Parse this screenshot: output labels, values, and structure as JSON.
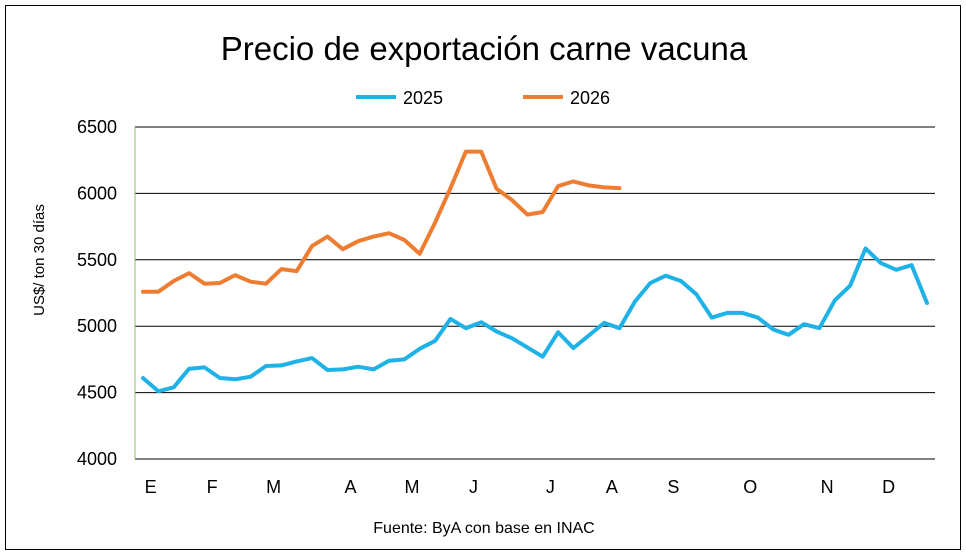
{
  "chart_data": {
    "type": "line",
    "title": "Precio de exportación carne vacuna",
    "xlabel": "",
    "ylabel": "US$/ ton 30 días",
    "source": "Fuente: ByA con base en INAC",
    "ylim": [
      4000,
      6500
    ],
    "yticks": [
      4000,
      4500,
      5000,
      5500,
      6000,
      6500
    ],
    "grid": true,
    "legend_position": "top",
    "month_labels": [
      "E",
      "F",
      "M",
      "A",
      "M",
      "J",
      "J",
      "A",
      "S",
      "O",
      "N",
      "D"
    ],
    "month_label_positions": [
      0.5,
      4.5,
      8.5,
      13.5,
      17.5,
      21.5,
      26.5,
      30.5,
      34.5,
      39.5,
      44.5,
      48.5
    ],
    "weeks_total": 52,
    "series": [
      {
        "name": "2025",
        "color": "#1EB2E6",
        "values": [
          4610,
          4510,
          4540,
          4680,
          4690,
          4610,
          4600,
          4620,
          4700,
          4705,
          4735,
          4760,
          4670,
          4675,
          4695,
          4675,
          4740,
          4750,
          4830,
          4890,
          5055,
          4985,
          5030,
          4960,
          4910,
          4840,
          4770,
          4955,
          4835,
          4930,
          5025,
          4985,
          5185,
          5325,
          5380,
          5340,
          5240,
          5065,
          5100,
          5100,
          5065,
          4975,
          4935,
          5015,
          4985,
          5195,
          5305,
          5585,
          5475,
          5425,
          5460,
          5175
        ]
      },
      {
        "name": "2026",
        "color": "#ED7D31",
        "values": [
          5260,
          5260,
          5340,
          5400,
          5320,
          5325,
          5385,
          5335,
          5320,
          5430,
          5415,
          5605,
          5675,
          5580,
          5640,
          5675,
          5700,
          5650,
          5545,
          5780,
          6040,
          6315,
          6315,
          6035,
          5950,
          5840,
          5860,
          6055,
          6090,
          6060,
          6045,
          6040
        ]
      }
    ]
  }
}
